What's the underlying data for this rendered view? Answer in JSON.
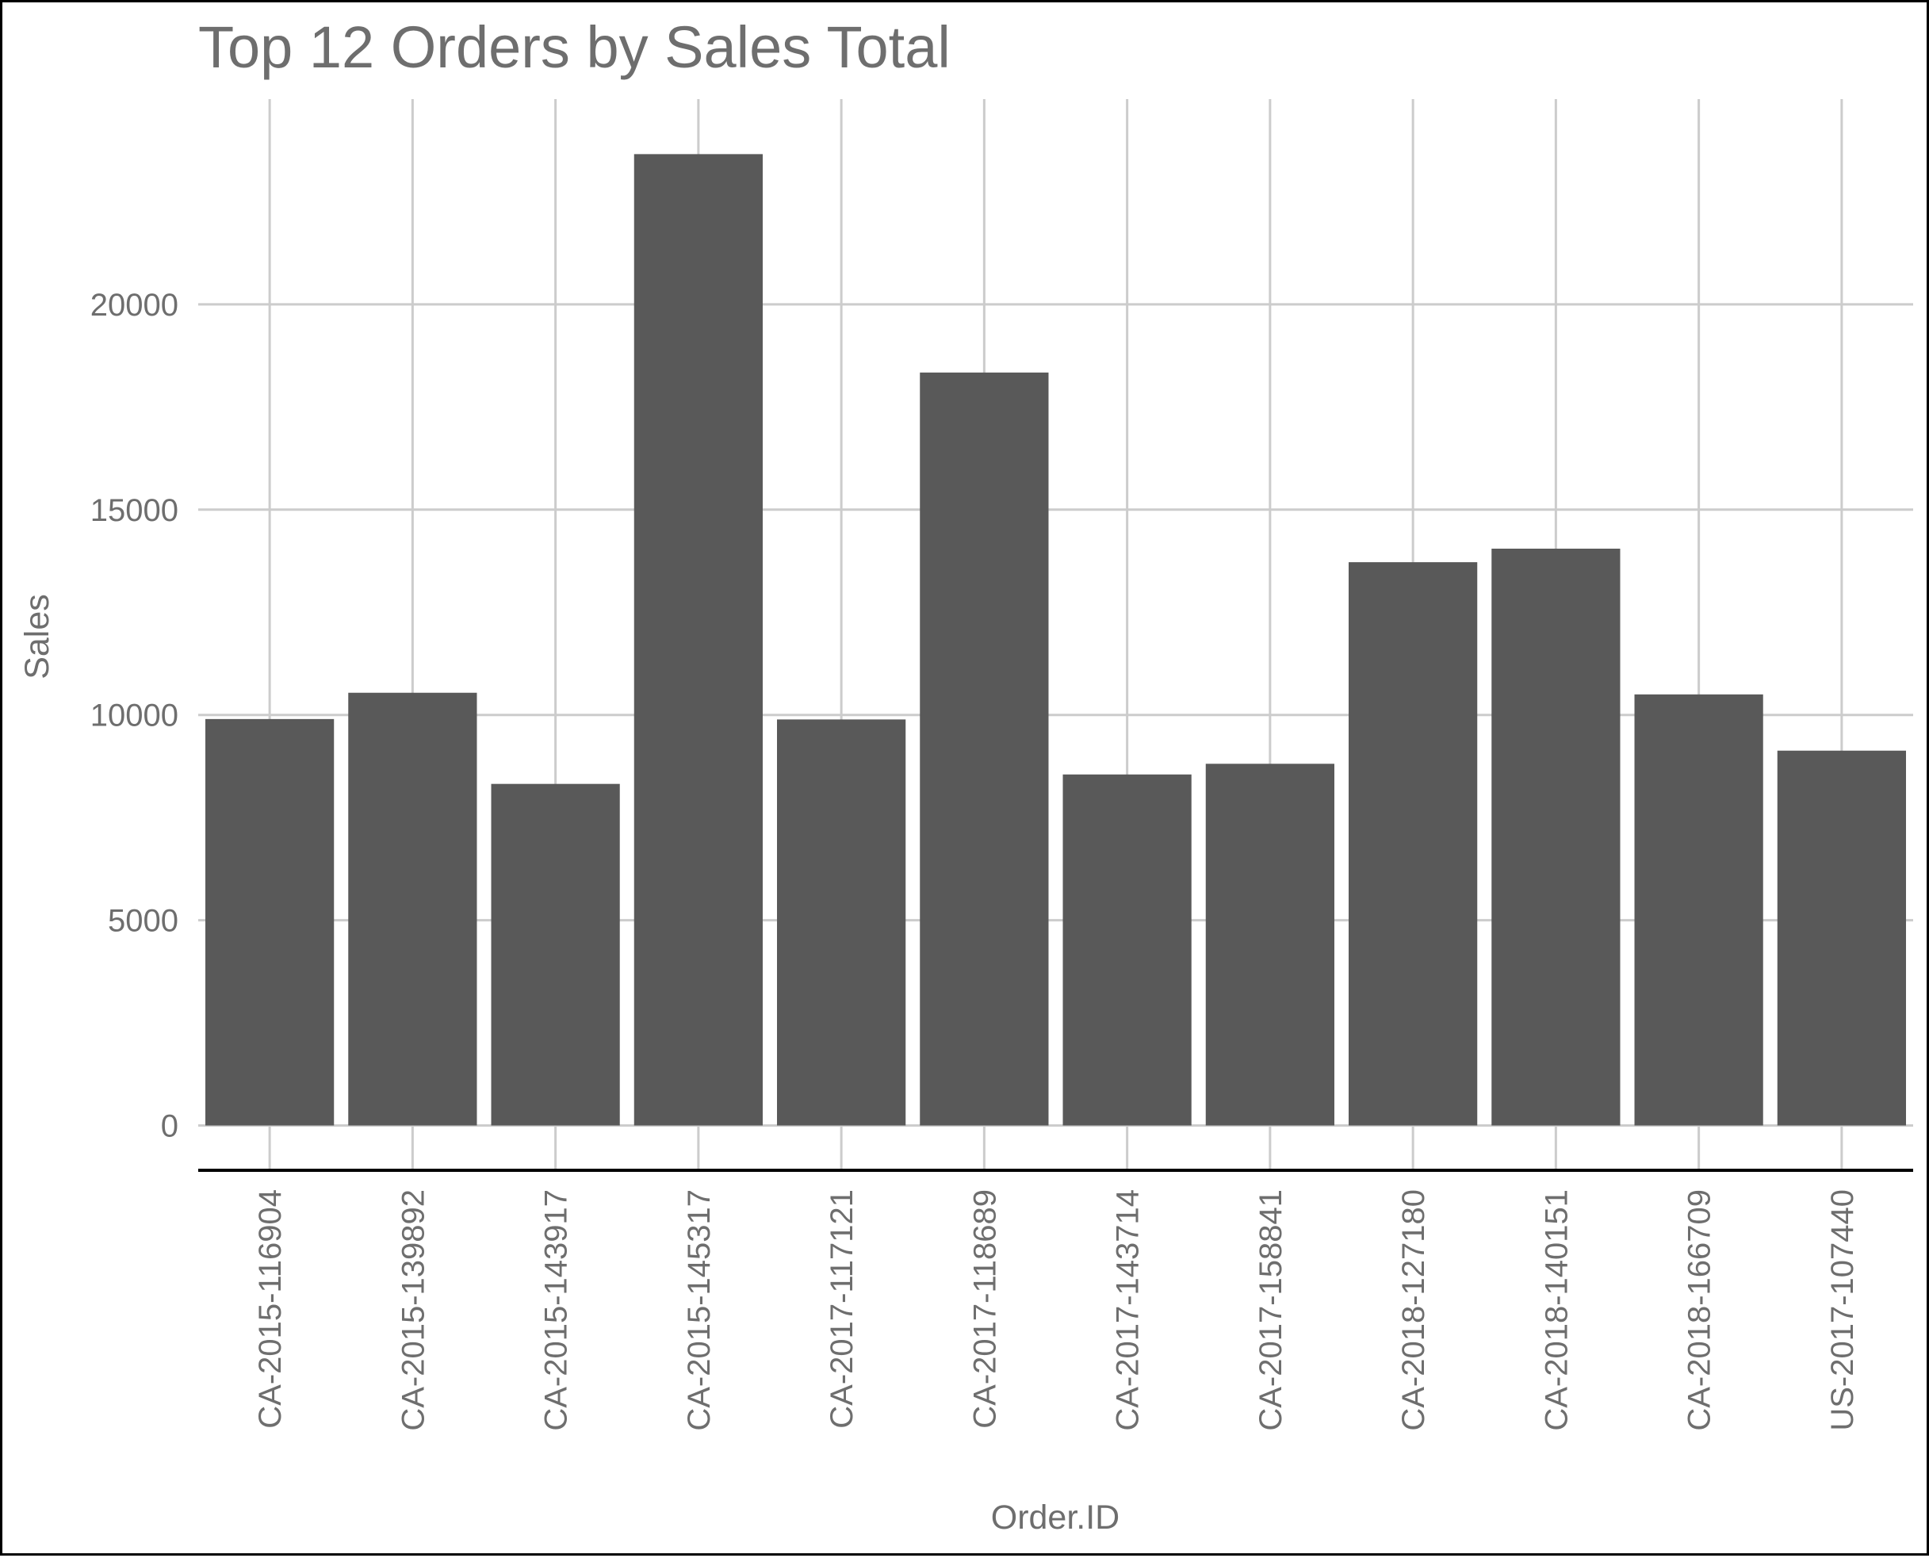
{
  "chart_data": {
    "type": "bar",
    "title": "Top 12 Orders by Sales Total",
    "xlabel": "Order.ID",
    "ylabel": "Sales",
    "categories": [
      "CA-2015-116904",
      "CA-2015-139892",
      "CA-2015-143917",
      "CA-2015-145317",
      "CA-2017-117121",
      "CA-2017-118689",
      "CA-2017-143714",
      "CA-2017-158841",
      "CA-2018-127180",
      "CA-2018-140151",
      "CA-2018-166709",
      "US-2017-107440"
    ],
    "values": [
      9900,
      10540,
      8320,
      23660,
      9890,
      18340,
      8550,
      8810,
      13720,
      14050,
      10500,
      9130
    ],
    "ylim": [
      -1130,
      25000
    ],
    "yticks": [
      0,
      5000,
      10000,
      15000,
      20000
    ],
    "ytick_labels": [
      "0",
      "5000",
      "10000",
      "15000",
      "20000"
    ],
    "grid": true,
    "legend": "none",
    "colors": {
      "bar": "#595959",
      "grid": "#cccccc",
      "text": "#6e6e6e",
      "axis_line": "#000000"
    }
  }
}
